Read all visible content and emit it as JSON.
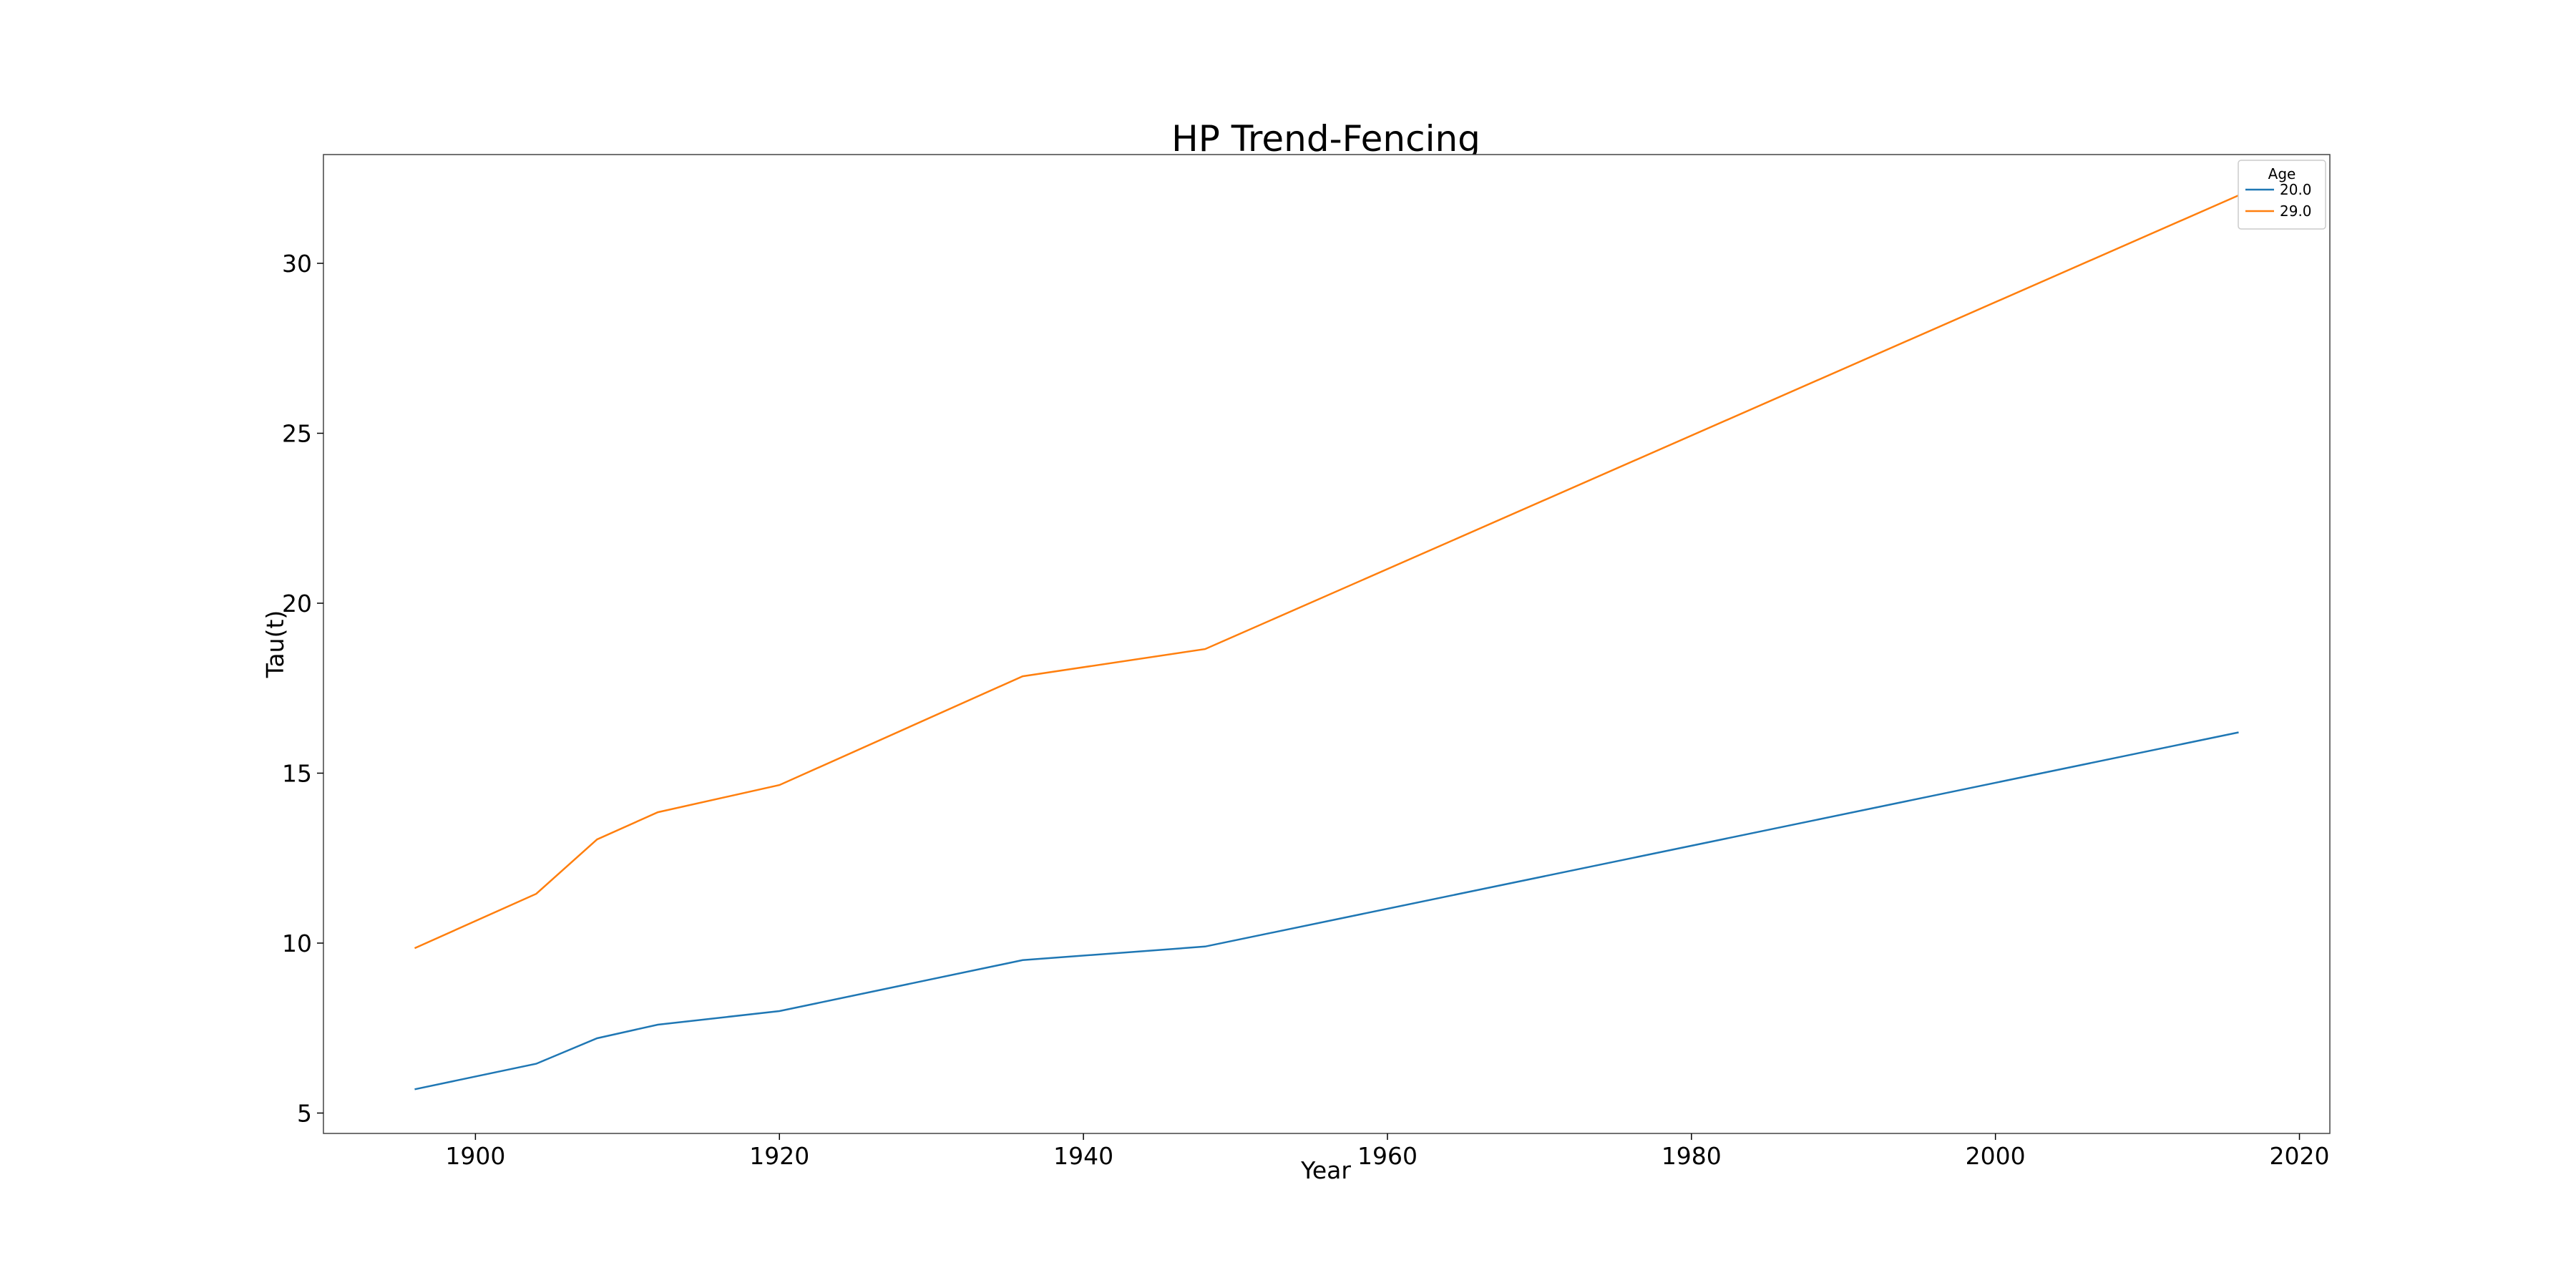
{
  "chart_data": {
    "type": "line",
    "title": "HP Trend-Fencing",
    "xlabel": "Year",
    "ylabel": "Tau(t)",
    "xlim": [
      1890,
      2022
    ],
    "ylim": [
      4.4,
      33.2
    ],
    "xticks": [
      1900,
      1920,
      1940,
      1960,
      1980,
      2000,
      2020
    ],
    "yticks": [
      5,
      10,
      15,
      20,
      25,
      30
    ],
    "grid": false,
    "legend": {
      "title": "Age",
      "position": "top-right"
    },
    "x": [
      1896,
      1904,
      1908,
      1912,
      1920,
      1936,
      1948,
      2016
    ],
    "series": [
      {
        "name": "20.0",
        "color": "#1f77b4",
        "values": [
          5.7,
          6.45,
          7.2,
          7.6,
          8.0,
          9.5,
          9.9,
          16.2
        ]
      },
      {
        "name": "29.0",
        "color": "#ff7f0e",
        "values": [
          9.85,
          11.45,
          13.05,
          13.85,
          14.65,
          17.85,
          18.65,
          32.0
        ]
      }
    ]
  }
}
